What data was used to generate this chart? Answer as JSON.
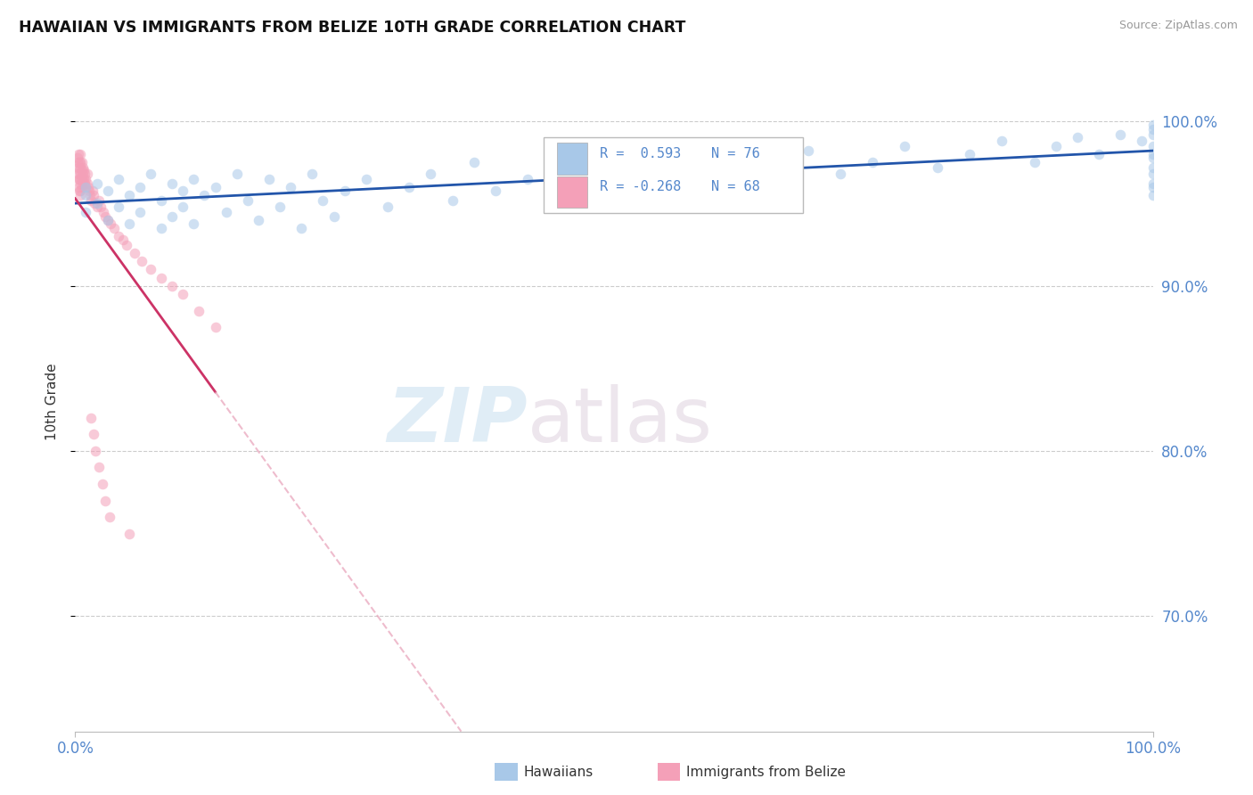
{
  "title": "HAWAIIAN VS IMMIGRANTS FROM BELIZE 10TH GRADE CORRELATION CHART",
  "source_text": "Source: ZipAtlas.com",
  "ylabel": "10th Grade",
  "hawaiian_R": 0.593,
  "hawaiian_N": 76,
  "belize_R": -0.268,
  "belize_N": 68,
  "hawaiian_color": "#a8c8e8",
  "belize_color": "#f4a0b8",
  "hawaiian_line_color": "#2255aa",
  "belize_line_color": "#cc3366",
  "belize_line_dashed_color": "#e8a0b8",
  "legend_label_hawaiian": "Hawaiians",
  "legend_label_belize": "Immigrants from Belize",
  "watermark_zip": "ZIP",
  "watermark_atlas": "atlas",
  "background_color": "#ffffff",
  "grid_color": "#cccccc",
  "tick_color": "#5588cc",
  "title_color": "#111111",
  "source_color": "#999999",
  "scatter_alpha": 0.55,
  "scatter_size": 70,
  "xlim": [
    0.0,
    1.0
  ],
  "ylim": [
    0.63,
    1.03
  ],
  "ytick_vals": [
    0.7,
    0.8,
    0.9,
    1.0
  ],
  "ytick_labels": [
    "70.0%",
    "80.0%",
    "90.0%",
    "100.0%"
  ],
  "xtick_vals": [
    0.0,
    1.0
  ],
  "xtick_labels": [
    "0.0%",
    "100.0%"
  ],
  "hawaiian_x": [
    0.01,
    0.01,
    0.01,
    0.02,
    0.02,
    0.03,
    0.03,
    0.04,
    0.04,
    0.05,
    0.05,
    0.06,
    0.06,
    0.07,
    0.08,
    0.08,
    0.09,
    0.09,
    0.1,
    0.1,
    0.11,
    0.11,
    0.12,
    0.13,
    0.14,
    0.15,
    0.16,
    0.17,
    0.18,
    0.19,
    0.2,
    0.21,
    0.22,
    0.23,
    0.24,
    0.25,
    0.27,
    0.29,
    0.31,
    0.33,
    0.35,
    0.37,
    0.39,
    0.42,
    0.45,
    0.48,
    0.5,
    0.53,
    0.56,
    0.59,
    0.62,
    0.65,
    0.68,
    0.71,
    0.74,
    0.77,
    0.8,
    0.83,
    0.86,
    0.89,
    0.91,
    0.93,
    0.95,
    0.97,
    0.99,
    1.0,
    1.0,
    1.0,
    1.0,
    1.0,
    1.0,
    1.0,
    1.0,
    1.0,
    1.0,
    1.0
  ],
  "hawaiian_y": [
    0.96,
    0.955,
    0.945,
    0.962,
    0.95,
    0.958,
    0.94,
    0.965,
    0.948,
    0.955,
    0.938,
    0.96,
    0.945,
    0.968,
    0.952,
    0.935,
    0.962,
    0.942,
    0.958,
    0.948,
    0.965,
    0.938,
    0.955,
    0.96,
    0.945,
    0.968,
    0.952,
    0.94,
    0.965,
    0.948,
    0.96,
    0.935,
    0.968,
    0.952,
    0.942,
    0.958,
    0.965,
    0.948,
    0.96,
    0.968,
    0.952,
    0.975,
    0.958,
    0.965,
    0.97,
    0.96,
    0.975,
    0.968,
    0.972,
    0.98,
    0.965,
    0.978,
    0.982,
    0.968,
    0.975,
    0.985,
    0.972,
    0.98,
    0.988,
    0.975,
    0.985,
    0.99,
    0.98,
    0.992,
    0.988,
    0.995,
    0.998,
    0.962,
    0.955,
    0.972,
    0.985,
    0.978,
    0.96,
    0.968,
    0.98,
    0.992
  ],
  "belize_x": [
    0.002,
    0.002,
    0.003,
    0.003,
    0.003,
    0.003,
    0.003,
    0.004,
    0.004,
    0.004,
    0.004,
    0.005,
    0.005,
    0.005,
    0.005,
    0.005,
    0.005,
    0.005,
    0.005,
    0.006,
    0.006,
    0.006,
    0.006,
    0.007,
    0.007,
    0.007,
    0.008,
    0.008,
    0.009,
    0.009,
    0.01,
    0.01,
    0.011,
    0.011,
    0.012,
    0.013,
    0.014,
    0.015,
    0.016,
    0.017,
    0.018,
    0.02,
    0.022,
    0.024,
    0.026,
    0.028,
    0.03,
    0.033,
    0.036,
    0.04,
    0.044,
    0.048,
    0.055,
    0.062,
    0.07,
    0.08,
    0.09,
    0.1,
    0.115,
    0.13,
    0.015,
    0.017,
    0.019,
    0.022,
    0.025,
    0.028,
    0.032,
    0.05
  ],
  "belize_y": [
    0.978,
    0.975,
    0.98,
    0.972,
    0.968,
    0.965,
    0.96,
    0.975,
    0.97,
    0.965,
    0.958,
    0.98,
    0.975,
    0.972,
    0.968,
    0.965,
    0.962,
    0.958,
    0.955,
    0.975,
    0.97,
    0.965,
    0.96,
    0.972,
    0.968,
    0.963,
    0.97,
    0.965,
    0.968,
    0.962,
    0.965,
    0.96,
    0.968,
    0.962,
    0.96,
    0.958,
    0.955,
    0.952,
    0.958,
    0.955,
    0.95,
    0.948,
    0.952,
    0.948,
    0.945,
    0.942,
    0.94,
    0.938,
    0.935,
    0.93,
    0.928,
    0.925,
    0.92,
    0.915,
    0.91,
    0.905,
    0.9,
    0.895,
    0.885,
    0.875,
    0.82,
    0.81,
    0.8,
    0.79,
    0.78,
    0.77,
    0.76,
    0.75
  ]
}
